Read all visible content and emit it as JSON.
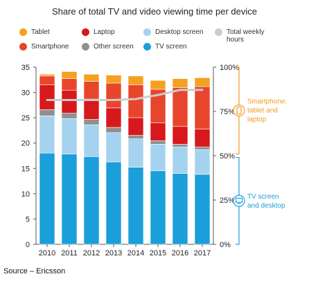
{
  "title": "Share of total TV and video viewing time per device",
  "source": "Source – Ericsson",
  "legend": [
    {
      "label": "Tablet",
      "color": "#f4a11f"
    },
    {
      "label": "Laptop",
      "color": "#d7181d"
    },
    {
      "label": "Desktop screen",
      "color": "#a5d2ee"
    },
    {
      "label": "Total weekly\nhours",
      "color": "#cccccc"
    },
    {
      "label": "Smartphone",
      "color": "#e8462c"
    },
    {
      "label": "Other screen",
      "color": "#8f8f8f"
    },
    {
      "label": "TV screen",
      "color": "#1a9fda"
    }
  ],
  "brackets": {
    "upper": {
      "label": "Smartphone,\ntablet and\nlaptop",
      "color": "#f39a1e",
      "icon": "smartphone-icon"
    },
    "lower": {
      "label": "TV screen\nand desktop",
      "color": "#1a9fda",
      "icon": "monitor-icon"
    }
  },
  "chart_data": {
    "type": "bar",
    "stacked": true,
    "categories": [
      "2010",
      "2011",
      "2012",
      "2013",
      "2014",
      "2015",
      "2016",
      "2017"
    ],
    "y_left_ticks": [
      "0",
      "5",
      "10",
      "15",
      "20",
      "25",
      "30",
      "35"
    ],
    "y_left_range": [
      0,
      35
    ],
    "y_right_ticks": [
      "0%",
      "25%",
      "50%",
      "75%",
      "100%"
    ],
    "y_right_range": [
      0,
      100
    ],
    "series": [
      {
        "name": "TV screen",
        "color": "#1a9fda",
        "values": [
          51.5,
          51,
          49.5,
          46.5,
          43.5,
          41.5,
          40,
          39.5
        ]
      },
      {
        "name": "Desktop screen",
        "color": "#a5d2ee",
        "values": [
          21,
          20,
          18,
          16.5,
          16,
          15,
          15,
          14
        ]
      },
      {
        "name": "Other screen",
        "color": "#8f8f8f",
        "values": [
          3.5,
          3,
          3,
          3,
          2,
          2,
          1.5,
          1.5
        ]
      },
      {
        "name": "Laptop",
        "color": "#d7181d",
        "values": [
          14,
          13,
          11.5,
          11,
          10,
          10,
          10,
          10
        ]
      },
      {
        "name": "Smartphone",
        "color": "#e8462c",
        "values": [
          5,
          6.5,
          10,
          14,
          18.5,
          19,
          22,
          24
        ]
      },
      {
        "name": "Tablet",
        "color": "#f4a11f",
        "values": [
          1,
          4,
          4,
          4.5,
          5,
          5,
          5,
          5
        ]
      }
    ],
    "line": {
      "name": "Total weekly hours",
      "color": "#cccccc",
      "values": [
        28.5,
        28.5,
        28.5,
        28.5,
        28.7,
        29.5,
        30.5,
        30.5
      ]
    }
  }
}
